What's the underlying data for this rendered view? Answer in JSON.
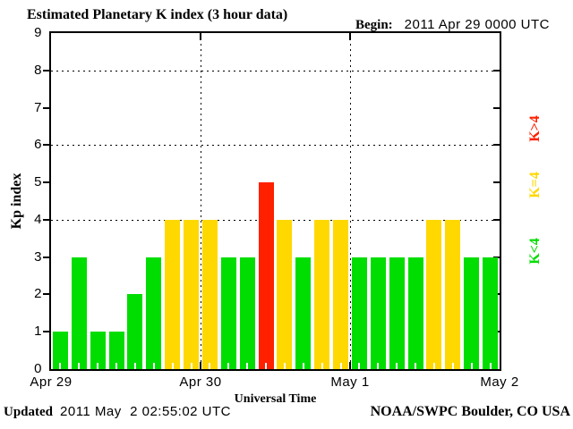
{
  "header": {
    "title": "Estimated Planetary K index (3 hour data)",
    "begin_label": "Begin:"
  },
  "chart_data": {
    "type": "bar",
    "title": "Estimated Planetary K index (3 hour data)",
    "begin": "2011 Apr 29 0000 UTC",
    "xlabel": "Universal Time",
    "ylabel": "Kp index",
    "ylim": [
      0,
      9
    ],
    "y_ticks": [
      0,
      1,
      2,
      3,
      4,
      5,
      6,
      7,
      8,
      9
    ],
    "dotted_gridlines_at": [
      4,
      6,
      8
    ],
    "grid": "dotted",
    "hours_per_bar": 3,
    "days": [
      {
        "label": "Apr 29",
        "values": [
          1,
          3,
          1,
          1,
          2,
          3,
          4,
          4
        ]
      },
      {
        "label": "Apr 30",
        "values": [
          4,
          3,
          3,
          5,
          4,
          3,
          4,
          4
        ]
      },
      {
        "label": "May 1",
        "values": [
          3,
          3,
          3,
          3,
          4,
          4,
          3,
          3
        ]
      }
    ],
    "end_label": "May 2",
    "legend_position": "right-rotated",
    "legend": [
      {
        "label": "K>4",
        "condition": "K>4",
        "color": "#ff2000"
      },
      {
        "label": "K=4",
        "condition": "K=4",
        "color": "#ffd800"
      },
      {
        "label": "K<4",
        "condition": "K<4",
        "color": "#00dd00"
      }
    ],
    "colors": {
      "green": "#00dd00",
      "yellow": "#ffd800",
      "red": "#ff2000",
      "axis": "#000000",
      "background": "#ffffff"
    }
  },
  "footer": {
    "updated_label": "Updated",
    "updated_value": "2011 May  2 02:55:02 UTC",
    "credit": "NOAA/SWPC Boulder, CO USA"
  }
}
